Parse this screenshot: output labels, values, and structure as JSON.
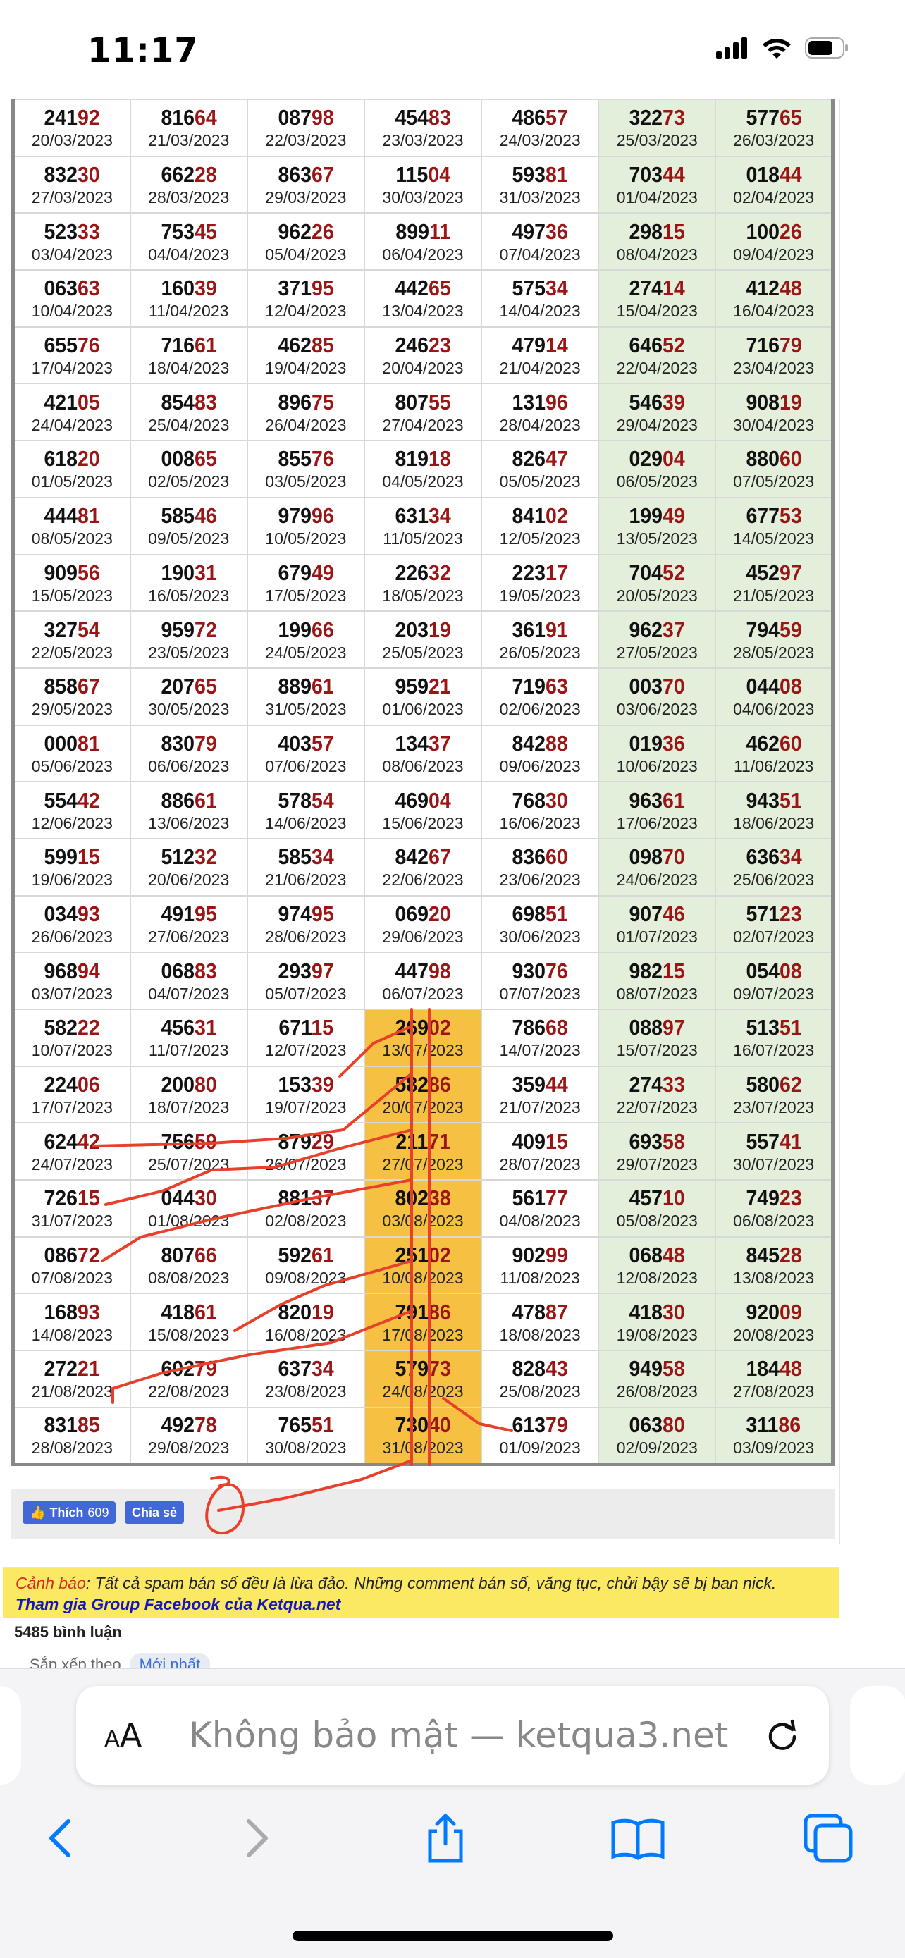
{
  "status_bar": {
    "time": "11:17"
  },
  "colors": {
    "accent_red": "#9c1414",
    "weekend_bg": "#e3efdb",
    "highlight_bg": "#f6c142",
    "annotation": "#e8402a",
    "ios_blue": "#007aff"
  },
  "table": {
    "rows": [
      [
        [
          "24192",
          "20/03/2023"
        ],
        [
          "81664",
          "21/03/2023"
        ],
        [
          "08798",
          "22/03/2023"
        ],
        [
          "45483",
          "23/03/2023"
        ],
        [
          "48657",
          "24/03/2023"
        ],
        [
          "32273",
          "25/03/2023"
        ],
        [
          "57765",
          "26/03/2023"
        ]
      ],
      [
        [
          "83230",
          "27/03/2023"
        ],
        [
          "66228",
          "28/03/2023"
        ],
        [
          "86367",
          "29/03/2023"
        ],
        [
          "11504",
          "30/03/2023"
        ],
        [
          "59381",
          "31/03/2023"
        ],
        [
          "70344",
          "01/04/2023"
        ],
        [
          "01844",
          "02/04/2023"
        ]
      ],
      [
        [
          "52333",
          "03/04/2023"
        ],
        [
          "75345",
          "04/04/2023"
        ],
        [
          "96226",
          "05/04/2023"
        ],
        [
          "89911",
          "06/04/2023"
        ],
        [
          "49736",
          "07/04/2023"
        ],
        [
          "29815",
          "08/04/2023"
        ],
        [
          "10026",
          "09/04/2023"
        ]
      ],
      [
        [
          "06363",
          "10/04/2023"
        ],
        [
          "16039",
          "11/04/2023"
        ],
        [
          "37195",
          "12/04/2023"
        ],
        [
          "44265",
          "13/04/2023"
        ],
        [
          "57534",
          "14/04/2023"
        ],
        [
          "27414",
          "15/04/2023"
        ],
        [
          "41248",
          "16/04/2023"
        ]
      ],
      [
        [
          "65576",
          "17/04/2023"
        ],
        [
          "71661",
          "18/04/2023"
        ],
        [
          "46285",
          "19/04/2023"
        ],
        [
          "24623",
          "20/04/2023"
        ],
        [
          "47914",
          "21/04/2023"
        ],
        [
          "64652",
          "22/04/2023"
        ],
        [
          "71679",
          "23/04/2023"
        ]
      ],
      [
        [
          "42105",
          "24/04/2023"
        ],
        [
          "85483",
          "25/04/2023"
        ],
        [
          "89675",
          "26/04/2023"
        ],
        [
          "80755",
          "27/04/2023"
        ],
        [
          "13196",
          "28/04/2023"
        ],
        [
          "54639",
          "29/04/2023"
        ],
        [
          "90819",
          "30/04/2023"
        ]
      ],
      [
        [
          "61820",
          "01/05/2023"
        ],
        [
          "00865",
          "02/05/2023"
        ],
        [
          "85576",
          "03/05/2023"
        ],
        [
          "81918",
          "04/05/2023"
        ],
        [
          "82647",
          "05/05/2023"
        ],
        [
          "02904",
          "06/05/2023"
        ],
        [
          "88060",
          "07/05/2023"
        ]
      ],
      [
        [
          "44481",
          "08/05/2023"
        ],
        [
          "58546",
          "09/05/2023"
        ],
        [
          "97996",
          "10/05/2023"
        ],
        [
          "63134",
          "11/05/2023"
        ],
        [
          "84102",
          "12/05/2023"
        ],
        [
          "19949",
          "13/05/2023"
        ],
        [
          "67753",
          "14/05/2023"
        ]
      ],
      [
        [
          "90956",
          "15/05/2023"
        ],
        [
          "19031",
          "16/05/2023"
        ],
        [
          "67949",
          "17/05/2023"
        ],
        [
          "22632",
          "18/05/2023"
        ],
        [
          "22317",
          "19/05/2023"
        ],
        [
          "70452",
          "20/05/2023"
        ],
        [
          "45297",
          "21/05/2023"
        ]
      ],
      [
        [
          "32754",
          "22/05/2023"
        ],
        [
          "95972",
          "23/05/2023"
        ],
        [
          "19966",
          "24/05/2023"
        ],
        [
          "20319",
          "25/05/2023"
        ],
        [
          "36191",
          "26/05/2023"
        ],
        [
          "96237",
          "27/05/2023"
        ],
        [
          "79459",
          "28/05/2023"
        ]
      ],
      [
        [
          "85867",
          "29/05/2023"
        ],
        [
          "20765",
          "30/05/2023"
        ],
        [
          "88961",
          "31/05/2023"
        ],
        [
          "95921",
          "01/06/2023"
        ],
        [
          "71963",
          "02/06/2023"
        ],
        [
          "00370",
          "03/06/2023"
        ],
        [
          "04408",
          "04/06/2023"
        ]
      ],
      [
        [
          "00081",
          "05/06/2023"
        ],
        [
          "83079",
          "06/06/2023"
        ],
        [
          "40357",
          "07/06/2023"
        ],
        [
          "13437",
          "08/06/2023"
        ],
        [
          "84288",
          "09/06/2023"
        ],
        [
          "01936",
          "10/06/2023"
        ],
        [
          "46260",
          "11/06/2023"
        ]
      ],
      [
        [
          "55442",
          "12/06/2023"
        ],
        [
          "88661",
          "13/06/2023"
        ],
        [
          "57854",
          "14/06/2023"
        ],
        [
          "46904",
          "15/06/2023"
        ],
        [
          "76830",
          "16/06/2023"
        ],
        [
          "96361",
          "17/06/2023"
        ],
        [
          "94351",
          "18/06/2023"
        ]
      ],
      [
        [
          "59915",
          "19/06/2023"
        ],
        [
          "51232",
          "20/06/2023"
        ],
        [
          "58534",
          "21/06/2023"
        ],
        [
          "84267",
          "22/06/2023"
        ],
        [
          "83660",
          "23/06/2023"
        ],
        [
          "09870",
          "24/06/2023"
        ],
        [
          "63634",
          "25/06/2023"
        ]
      ],
      [
        [
          "03493",
          "26/06/2023"
        ],
        [
          "49195",
          "27/06/2023"
        ],
        [
          "97495",
          "28/06/2023"
        ],
        [
          "06920",
          "29/06/2023"
        ],
        [
          "69851",
          "30/06/2023"
        ],
        [
          "90746",
          "01/07/2023"
        ],
        [
          "57123",
          "02/07/2023"
        ]
      ],
      [
        [
          "96894",
          "03/07/2023"
        ],
        [
          "06883",
          "04/07/2023"
        ],
        [
          "29397",
          "05/07/2023"
        ],
        [
          "44798",
          "06/07/2023"
        ],
        [
          "93076",
          "07/07/2023"
        ],
        [
          "98215",
          "08/07/2023"
        ],
        [
          "05408",
          "09/07/2023"
        ]
      ],
      [
        [
          "58222",
          "10/07/2023"
        ],
        [
          "45631",
          "11/07/2023"
        ],
        [
          "67115",
          "12/07/2023"
        ],
        [
          "26902",
          "13/07/2023",
          true
        ],
        [
          "78668",
          "14/07/2023"
        ],
        [
          "08897",
          "15/07/2023"
        ],
        [
          "51351",
          "16/07/2023"
        ]
      ],
      [
        [
          "22406",
          "17/07/2023"
        ],
        [
          "20080",
          "18/07/2023"
        ],
        [
          "15339",
          "19/07/2023"
        ],
        [
          "58286",
          "20/07/2023",
          true
        ],
        [
          "35944",
          "21/07/2023"
        ],
        [
          "27433",
          "22/07/2023"
        ],
        [
          "58062",
          "23/07/2023"
        ]
      ],
      [
        [
          "62442",
          "24/07/2023"
        ],
        [
          "75659",
          "25/07/2023"
        ],
        [
          "87929",
          "26/07/2023"
        ],
        [
          "21171",
          "27/07/2023",
          true
        ],
        [
          "40915",
          "28/07/2023"
        ],
        [
          "69358",
          "29/07/2023"
        ],
        [
          "55741",
          "30/07/2023"
        ]
      ],
      [
        [
          "72615",
          "31/07/2023"
        ],
        [
          "04430",
          "01/08/2023"
        ],
        [
          "88137",
          "02/08/2023"
        ],
        [
          "80238",
          "03/08/2023",
          true
        ],
        [
          "56177",
          "04/08/2023"
        ],
        [
          "45710",
          "05/08/2023"
        ],
        [
          "74923",
          "06/08/2023"
        ]
      ],
      [
        [
          "08672",
          "07/08/2023"
        ],
        [
          "80766",
          "08/08/2023"
        ],
        [
          "59261",
          "09/08/2023"
        ],
        [
          "25102",
          "10/08/2023",
          true
        ],
        [
          "90299",
          "11/08/2023"
        ],
        [
          "06848",
          "12/08/2023"
        ],
        [
          "84528",
          "13/08/2023"
        ]
      ],
      [
        [
          "16893",
          "14/08/2023"
        ],
        [
          "41861",
          "15/08/2023"
        ],
        [
          "82019",
          "16/08/2023"
        ],
        [
          "79186",
          "17/08/2023",
          true
        ],
        [
          "47887",
          "18/08/2023"
        ],
        [
          "41830",
          "19/08/2023"
        ],
        [
          "92009",
          "20/08/2023"
        ]
      ],
      [
        [
          "27221",
          "21/08/2023"
        ],
        [
          "60279",
          "22/08/2023"
        ],
        [
          "63734",
          "23/08/2023"
        ],
        [
          "57973",
          "24/08/2023",
          true
        ],
        [
          "82843",
          "25/08/2023"
        ],
        [
          "94958",
          "26/08/2023"
        ],
        [
          "18448",
          "27/08/2023"
        ]
      ],
      [
        [
          "83185",
          "28/08/2023"
        ],
        [
          "49278",
          "29/08/2023"
        ],
        [
          "76551",
          "30/08/2023"
        ],
        [
          "73040",
          "31/08/2023",
          true
        ],
        [
          "61379",
          "01/09/2023"
        ],
        [
          "06380",
          "02/09/2023"
        ],
        [
          "31186",
          "03/09/2023"
        ]
      ]
    ]
  },
  "social": {
    "like_label": "Thích",
    "like_count": "609",
    "share_label": "Chia sẻ"
  },
  "warning": {
    "label": "Cảnh báo",
    "text": ": Tất cả spam bán số đều là lừa đảo. Những comment bán số, văng tục, chửi bậy sẽ bị ban nick.",
    "link": "Tham gia Group Facebook của Ketqua.net"
  },
  "comments": {
    "count_label": "5485 bình luận",
    "sort_label": "Sắp xếp theo",
    "sort_value": "Mới nhất"
  },
  "browser": {
    "aa": "AA",
    "url_text": "Không bảo mật — ketqua3.net",
    "icons": [
      "back-icon",
      "forward-icon",
      "share-icon",
      "bookmarks-icon",
      "tabs-icon"
    ]
  }
}
